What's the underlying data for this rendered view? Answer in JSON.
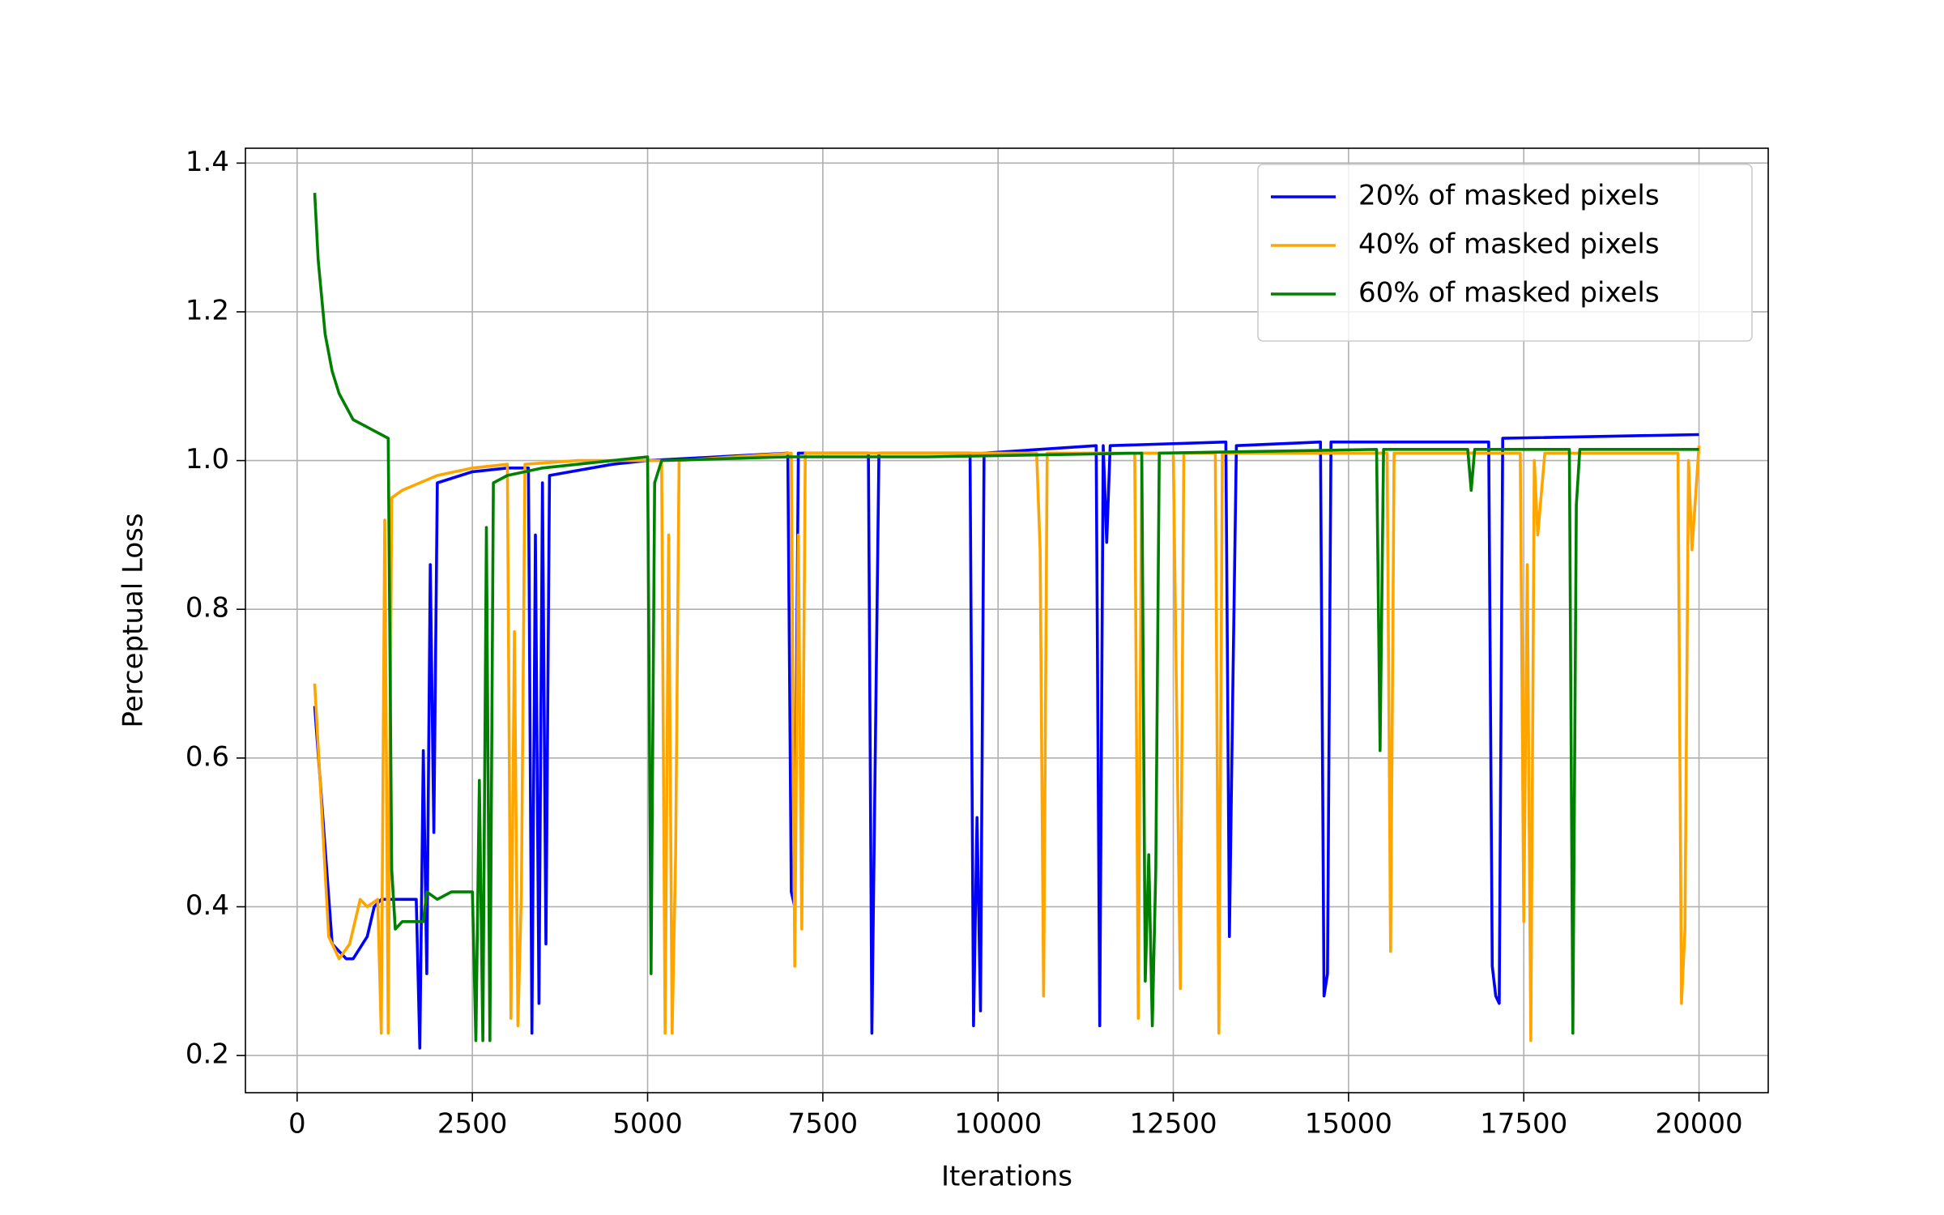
{
  "chart_data": {
    "type": "line",
    "x_label": "Iterations",
    "y_label": "Perceptual Loss",
    "xlim": [
      -737.5,
      20987.5
    ],
    "ylim": [
      0.15,
      1.42
    ],
    "xticks": [
      0,
      2500,
      5000,
      7500,
      10000,
      12500,
      15000,
      17500,
      20000
    ],
    "yticks": [
      0.2,
      0.4,
      0.6,
      0.8,
      {
        "value": 1.0,
        "label": "1.0"
      },
      1.2,
      1.4
    ],
    "grid": true,
    "legend": "upper right",
    "series": [
      {
        "name": "20% of masked pixels",
        "color": "#0000ff",
        "x": [
          250,
          500,
          700,
          800,
          1000,
          1100,
          1200,
          1300,
          1700,
          1750,
          1800,
          1850,
          1900,
          1950,
          2000,
          2500,
          3000,
          3300,
          3350,
          3400,
          3450,
          3500,
          3550,
          3600,
          4500,
          5000,
          7000,
          7050,
          7100,
          7150,
          8150,
          8200,
          8300,
          9600,
          9650,
          9700,
          9750,
          9800,
          11400,
          11450,
          11500,
          11550,
          11600,
          13250,
          13300,
          13350,
          13400,
          14600,
          14650,
          14700,
          14750,
          17000,
          17050,
          17100,
          17150,
          17200,
          20000
        ],
        "values": [
          0.67,
          0.35,
          0.33,
          0.33,
          0.36,
          0.4,
          0.41,
          0.41,
          0.41,
          0.21,
          0.61,
          0.31,
          0.86,
          0.5,
          0.97,
          0.985,
          0.99,
          0.99,
          0.23,
          0.9,
          0.27,
          0.97,
          0.35,
          0.98,
          0.995,
          1.0,
          1.01,
          0.42,
          0.4,
          1.01,
          1.01,
          0.23,
          1.01,
          1.01,
          0.24,
          0.52,
          0.26,
          1.01,
          1.02,
          0.24,
          1.02,
          0.89,
          1.02,
          1.025,
          0.36,
          0.7,
          1.02,
          1.025,
          0.28,
          0.31,
          1.025,
          1.025,
          0.32,
          0.28,
          0.27,
          1.03,
          1.035
        ]
      },
      {
        "name": "40% of masked pixels",
        "color": "#ffa500",
        "x": [
          250,
          450,
          600,
          750,
          900,
          1000,
          1150,
          1200,
          1250,
          1300,
          1350,
          1500,
          2000,
          2500,
          3000,
          3050,
          3100,
          3150,
          3200,
          3250,
          4000,
          5200,
          5250,
          5300,
          5350,
          5400,
          5450,
          7050,
          7100,
          7150,
          7200,
          7250,
          10550,
          10600,
          10650,
          10700,
          11950,
          12000,
          12050,
          12500,
          12600,
          12650,
          13100,
          13150,
          13200,
          15550,
          15600,
          15650,
          17450,
          17500,
          17550,
          17600,
          17650,
          17700,
          17800,
          19700,
          19750,
          19800,
          19850,
          19900,
          20000
        ],
        "values": [
          0.7,
          0.36,
          0.33,
          0.35,
          0.41,
          0.4,
          0.41,
          0.23,
          0.92,
          0.23,
          0.95,
          0.96,
          0.98,
          0.99,
          0.995,
          0.25,
          0.77,
          0.24,
          0.42,
          0.995,
          1.0,
          1.0,
          0.23,
          0.9,
          0.23,
          0.47,
          1.0,
          1.01,
          0.32,
          0.9,
          0.37,
          1.01,
          1.01,
          0.88,
          0.28,
          1.01,
          1.01,
          0.25,
          1.01,
          1.01,
          0.29,
          1.01,
          1.01,
          0.23,
          1.01,
          1.01,
          0.34,
          1.01,
          1.01,
          0.38,
          0.86,
          0.22,
          1.0,
          0.9,
          1.01,
          1.01,
          0.27,
          0.37,
          1.0,
          0.88,
          1.02
        ]
      },
      {
        "name": "60% of masked pixels",
        "color": "#008000",
        "x": [
          250,
          300,
          400,
          500,
          600,
          800,
          1000,
          1100,
          1200,
          1300,
          1350,
          1400,
          1500,
          1800,
          1850,
          2000,
          2200,
          2500,
          2550,
          2600,
          2650,
          2700,
          2750,
          2800,
          3000,
          3500,
          4500,
          5000,
          5050,
          5100,
          5200,
          7000,
          9000,
          12050,
          12100,
          12150,
          12200,
          12250,
          12300,
          15400,
          15450,
          15500,
          16700,
          16750,
          16800,
          18150,
          18200,
          18250,
          18300,
          20000
        ],
        "values": [
          1.36,
          1.27,
          1.17,
          1.12,
          1.09,
          1.055,
          1.045,
          1.04,
          1.035,
          1.03,
          0.45,
          0.37,
          0.38,
          0.38,
          0.42,
          0.41,
          0.42,
          0.42,
          0.22,
          0.57,
          0.22,
          0.91,
          0.22,
          0.97,
          0.98,
          0.99,
          1.0,
          1.005,
          0.31,
          0.97,
          1.0,
          1.005,
          1.005,
          1.01,
          0.3,
          0.47,
          0.24,
          0.45,
          1.01,
          1.015,
          0.61,
          1.015,
          1.015,
          0.96,
          1.015,
          1.015,
          0.23,
          0.94,
          1.015,
          1.015
        ]
      }
    ]
  }
}
